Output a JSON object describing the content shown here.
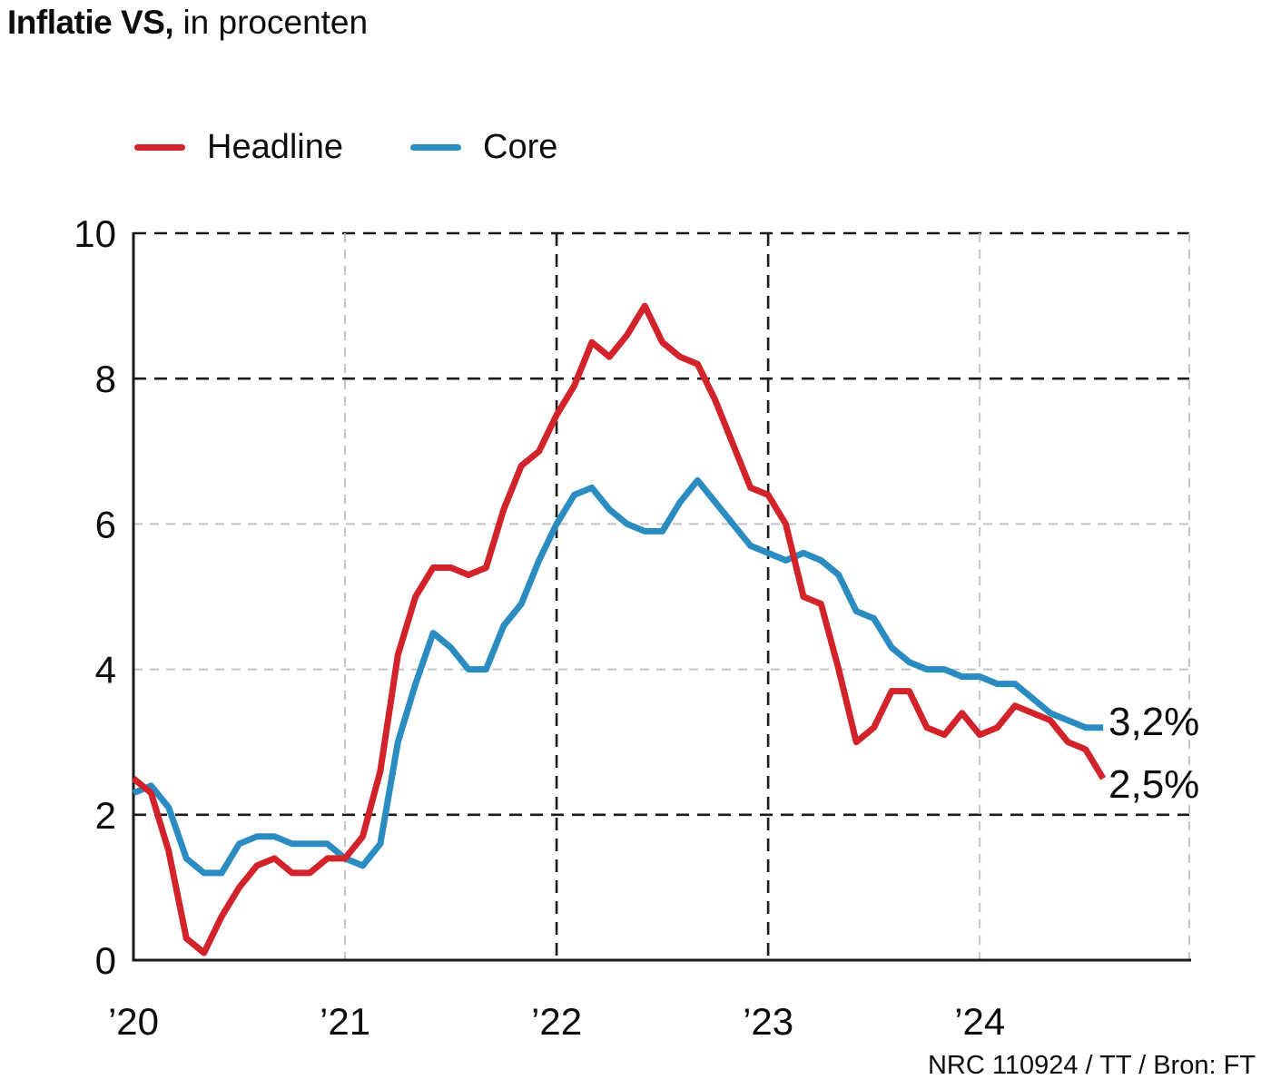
{
  "title": {
    "bold": "Inflatie VS,",
    "rest": "in procenten"
  },
  "legend": {
    "items": [
      {
        "label": "Headline",
        "color": "#d2232b"
      },
      {
        "label": "Core",
        "color": "#2b8cc2"
      }
    ]
  },
  "annotations": {
    "core_end": "3,2%",
    "headline_end": "2,5%"
  },
  "source": "NRC 110924 / TT / Bron: FT",
  "chart_data": {
    "type": "line",
    "title": "Inflatie VS, in procenten",
    "xlabel": "",
    "ylabel": "",
    "ylim": [
      0,
      10
    ],
    "grid": true,
    "legend_position": "top-left",
    "y_ticks": [
      0,
      2,
      4,
      6,
      8,
      10
    ],
    "y_gridlines": [
      {
        "value": 2,
        "strong": true
      },
      {
        "value": 4,
        "strong": false
      },
      {
        "value": 6,
        "strong": false
      },
      {
        "value": 8,
        "strong": true
      },
      {
        "value": 10,
        "strong": true
      }
    ],
    "x_ticks": [
      {
        "label": "’20",
        "month": 0,
        "gridline": false,
        "strong": false
      },
      {
        "label": "’21",
        "month": 12,
        "gridline": true,
        "strong": false
      },
      {
        "label": "’22",
        "month": 24,
        "gridline": true,
        "strong": true
      },
      {
        "label": "’23",
        "month": 36,
        "gridline": true,
        "strong": true
      },
      {
        "label": "’24",
        "month": 48,
        "gridline": true,
        "strong": false
      }
    ],
    "right_edge_gridline": true,
    "x_unit": "month",
    "series": [
      {
        "name": "Core",
        "color": "#2b8cc2",
        "end_label": "3,2%",
        "values": [
          2.3,
          2.4,
          2.1,
          1.4,
          1.2,
          1.2,
          1.6,
          1.7,
          1.7,
          1.6,
          1.6,
          1.6,
          1.4,
          1.3,
          1.6,
          3.0,
          3.8,
          4.5,
          4.3,
          4.0,
          4.0,
          4.6,
          4.9,
          5.5,
          6.0,
          6.4,
          6.5,
          6.2,
          6.0,
          5.9,
          5.9,
          6.3,
          6.6,
          6.3,
          6.0,
          5.7,
          5.6,
          5.5,
          5.6,
          5.5,
          5.3,
          4.8,
          4.7,
          4.3,
          4.1,
          4.0,
          4.0,
          3.9,
          3.9,
          3.8,
          3.8,
          3.6,
          3.4,
          3.3,
          3.2,
          3.2
        ]
      },
      {
        "name": "Headline",
        "color": "#d2232b",
        "end_label": "2,5%",
        "values": [
          2.5,
          2.3,
          1.5,
          0.3,
          0.1,
          0.6,
          1.0,
          1.3,
          1.4,
          1.2,
          1.2,
          1.4,
          1.4,
          1.7,
          2.6,
          4.2,
          5.0,
          5.4,
          5.4,
          5.3,
          5.4,
          6.2,
          6.8,
          7.0,
          7.5,
          7.9,
          8.5,
          8.3,
          8.6,
          9.0,
          8.5,
          8.3,
          8.2,
          7.7,
          7.1,
          6.5,
          6.4,
          6.0,
          5.0,
          4.9,
          4.0,
          3.0,
          3.2,
          3.7,
          3.7,
          3.2,
          3.1,
          3.4,
          3.1,
          3.2,
          3.5,
          3.4,
          3.3,
          3.0,
          2.9,
          2.5
        ]
      }
    ]
  }
}
